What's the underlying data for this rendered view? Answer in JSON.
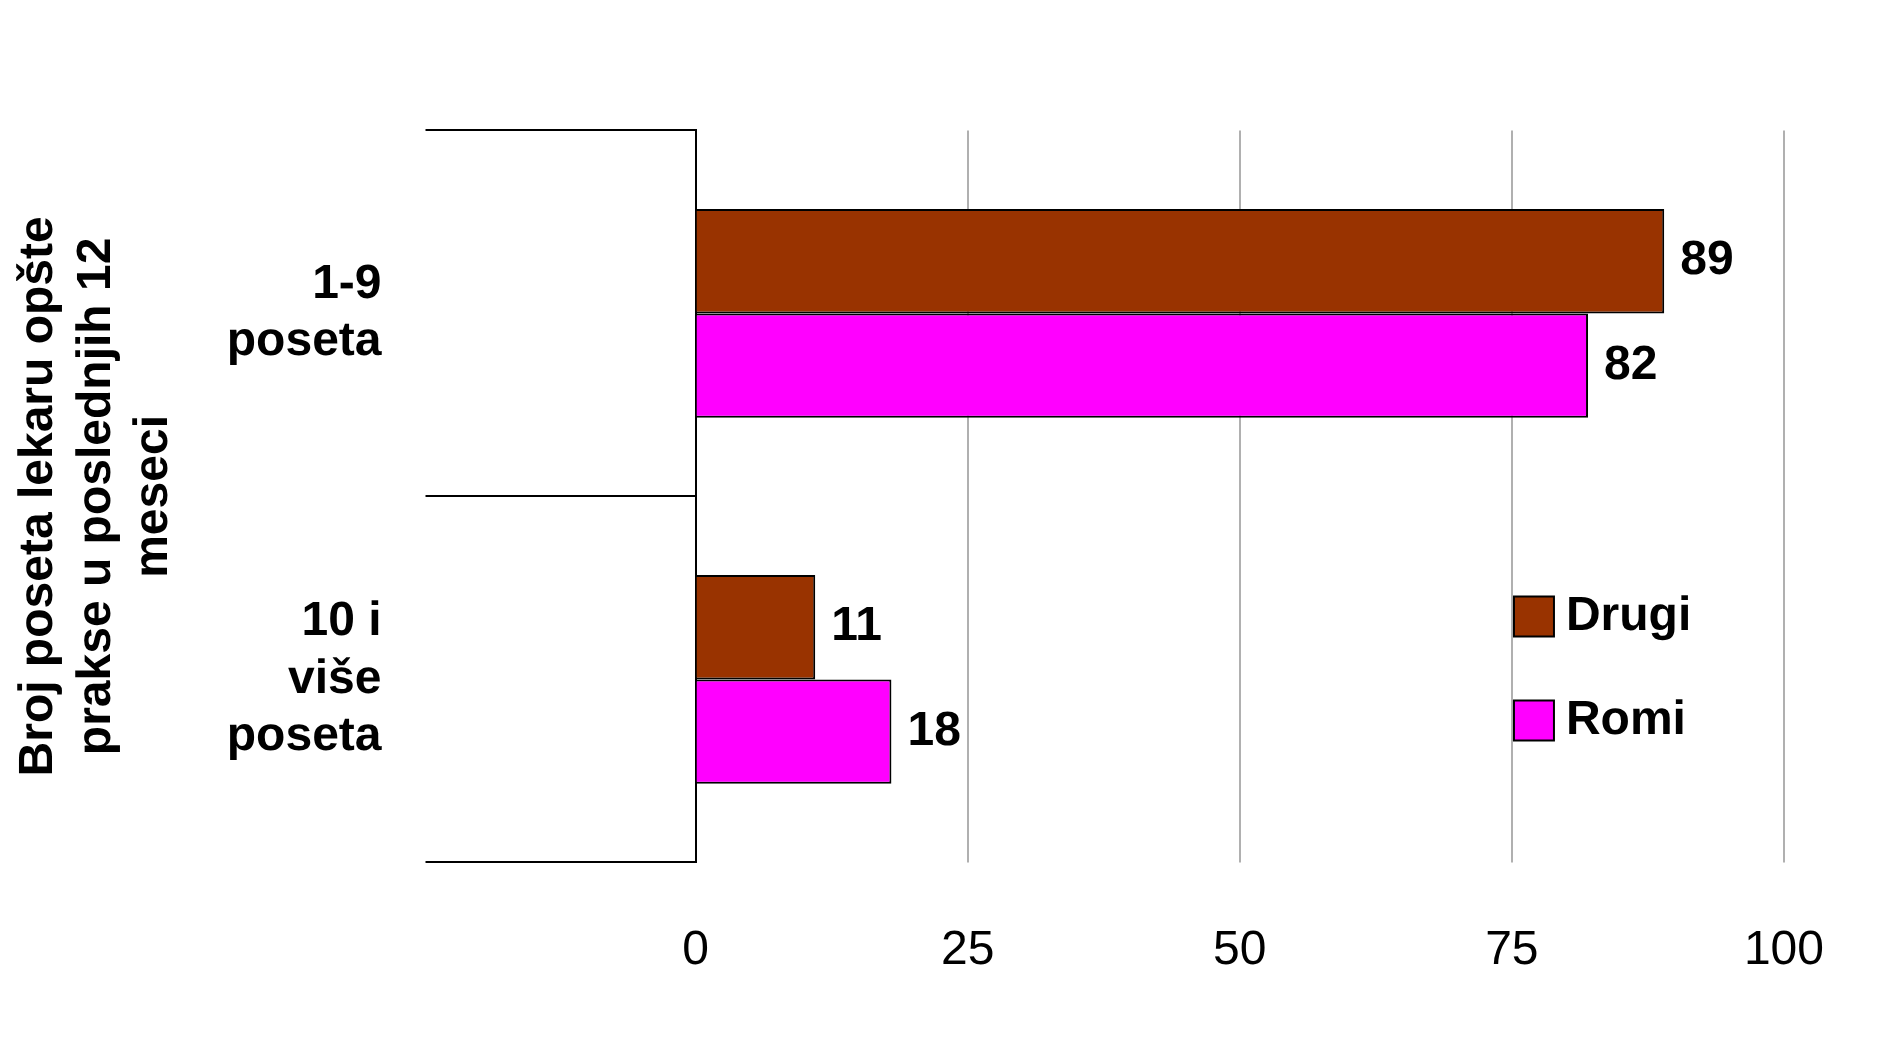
{
  "chart_data": {
    "type": "bar",
    "orientation": "horizontal",
    "ylabel": "Broj poseta lekaru opšte prakse u poslednjih 12 meseci",
    "categories": [
      "1-9 poseta",
      "10 i više poseta"
    ],
    "series": [
      {
        "name": "Drugi",
        "color": "#993300",
        "values": [
          89,
          11
        ]
      },
      {
        "name": "Romi",
        "color": "#ff00ff",
        "values": [
          82,
          18
        ]
      }
    ],
    "xlim": [
      0,
      100
    ],
    "xticks": [
      0,
      25,
      50,
      75,
      100
    ],
    "grid": "x",
    "legend": "bottom right",
    "data_labels": true
  }
}
